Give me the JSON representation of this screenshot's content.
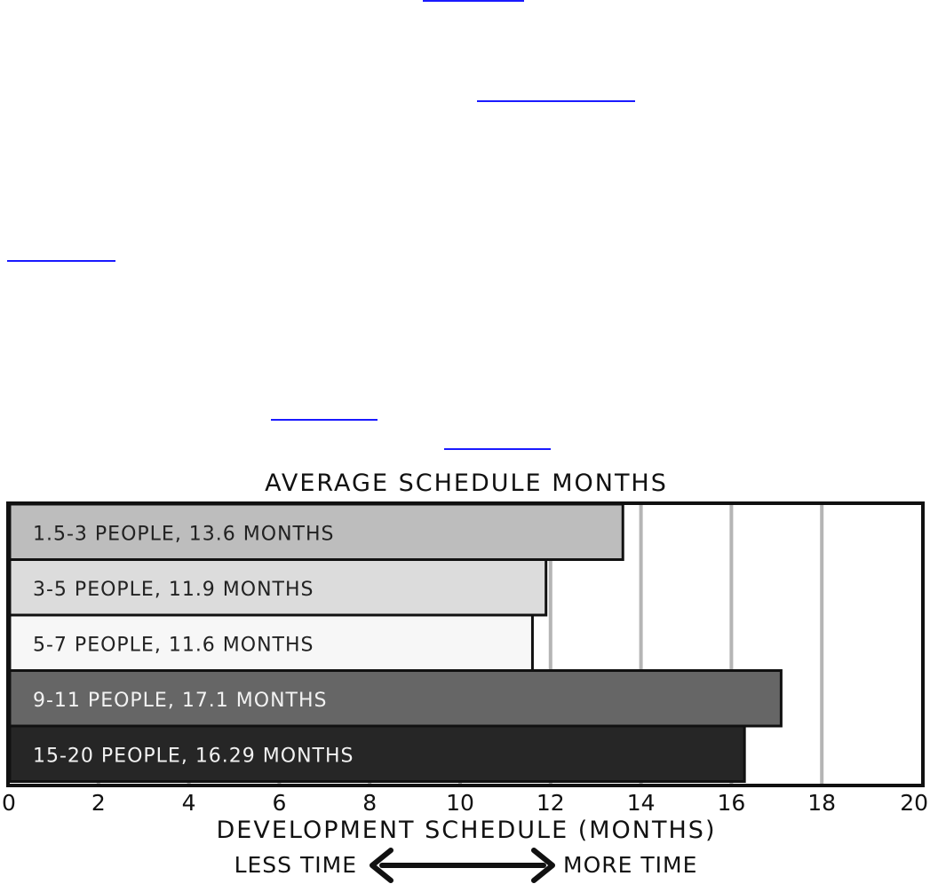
{
  "colors": {
    "link": "#1a1aff",
    "frame": "#111111",
    "grid": "#b5b5b5",
    "background": "#ffffff"
  },
  "chart_data": {
    "type": "bar",
    "orientation": "horizontal",
    "title": "AVERAGE SCHEDULE MONTHS",
    "xlabel": "DEVELOPMENT SCHEDULE (MONTHS)",
    "direction_labels": {
      "left": "LESS TIME",
      "right": "MORE TIME"
    },
    "xlim": [
      0,
      20
    ],
    "xticks": [
      "0",
      "2",
      "4",
      "6",
      "8",
      "10",
      "12",
      "14",
      "16",
      "18",
      "20"
    ],
    "grid": "vertical",
    "bars": [
      {
        "label": "1.5-3 PEOPLE, 13.6 MONTHS",
        "value": 13.6,
        "color": "#bdbdbd",
        "text_color": "#222222"
      },
      {
        "label": "3-5 PEOPLE, 11.9 MONTHS",
        "value": 11.9,
        "color": "#dcdcdc",
        "text_color": "#222222"
      },
      {
        "label": "5-7 PEOPLE, 11.6 MONTHS",
        "value": 11.6,
        "color": "#f7f7f7",
        "text_color": "#222222"
      },
      {
        "label": "9-11 PEOPLE, 17.1 MONTHS",
        "value": 17.1,
        "color": "#666666",
        "text_color": "#f2f2f2"
      },
      {
        "label": "15-20 PEOPLE, 16.29 MONTHS",
        "value": 16.29,
        "color": "#262626",
        "text_color": "#f2f2f2"
      }
    ]
  }
}
